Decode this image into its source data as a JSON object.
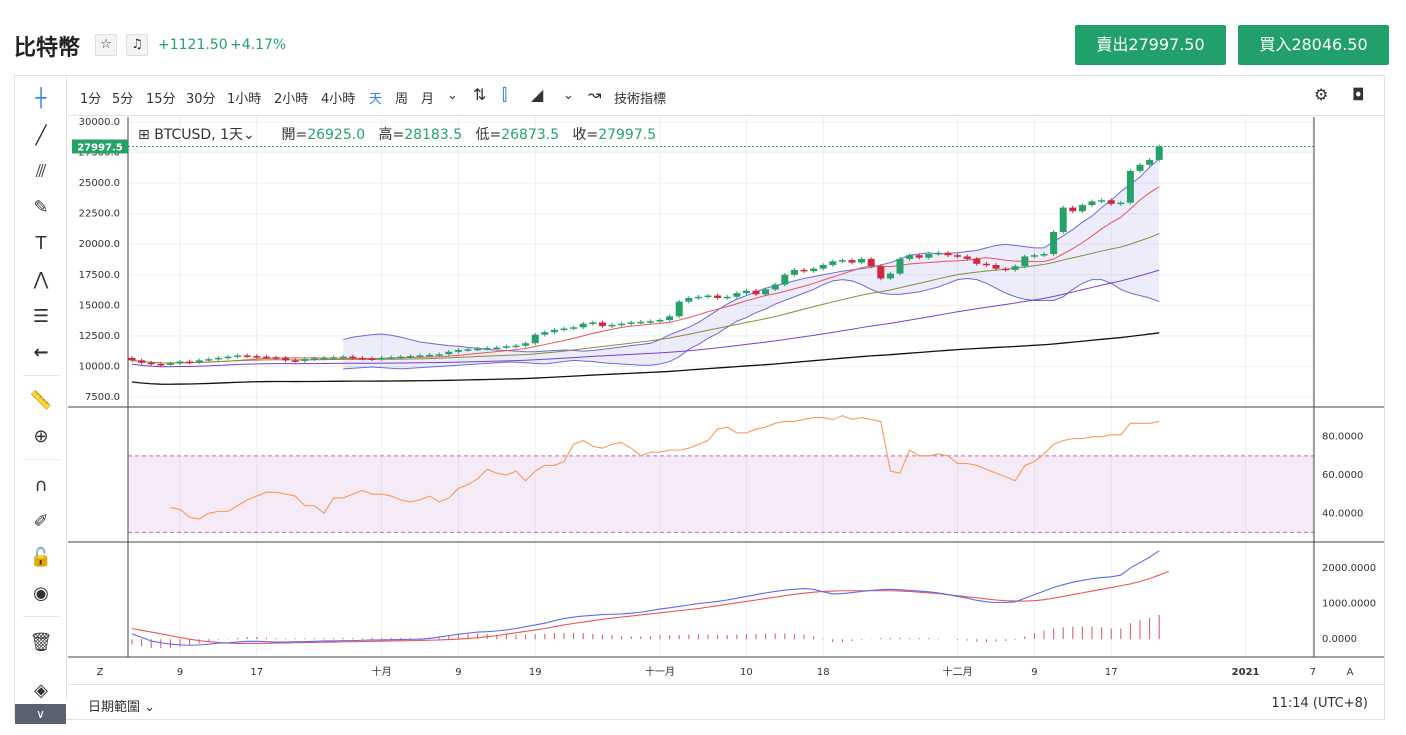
{
  "header": {
    "title": "比特幣",
    "star_icon": "star-icon",
    "bell_icon": "bell-icon",
    "change_abs": "+1121.50",
    "change_pct": "+4.17%",
    "sell_label": "賣出27997.50",
    "buy_label": "買入28046.50"
  },
  "toolbar": {
    "timeframes": [
      "1分",
      "5分",
      "15分",
      "30分",
      "1小時",
      "2小時",
      "4小時",
      "天",
      "周",
      "月"
    ],
    "active_timeframe": "天",
    "indicators_label": "技術指標"
  },
  "legend": {
    "symbol": "BTCUSD, 1天",
    "open_label": "開=",
    "open": "26925.0",
    "high_label": "高=",
    "high": "28183.5",
    "low_label": "低=",
    "low": "26873.5",
    "close_label": "收=",
    "close": "27997.5"
  },
  "bottom": {
    "date_range_label": "日期範圍",
    "clock": "11:14 (UTC+8)",
    "z_label": "Z",
    "a_label": "A"
  },
  "colors": {
    "up": "#26a269",
    "down": "#d0283c",
    "band": "#6b6bd6",
    "ma_red": "#e8565a",
    "ma_olive": "#8c8c3a",
    "ma_purple": "#7a3fd1",
    "ma_black": "#111111",
    "rsi": "#f59a5a",
    "macd": "#5b6bf0",
    "signal": "#e8565a"
  },
  "chart_data": [
    {
      "type": "candlestick",
      "title": "BTCUSD, 1天",
      "ylim": [
        7500,
        30000
      ],
      "yticks": [
        30000.0,
        27500.0,
        25000.0,
        22500.0,
        20000.0,
        17500.0,
        15000.0,
        12500.0,
        10000.0,
        7500.0
      ],
      "ytick_labels": [
        "30000.0",
        "27500.0",
        "25000.0",
        "22500.0",
        "20000.0",
        "17500.0",
        "15000.0",
        "12500.0",
        "10000.0",
        "7500.0"
      ],
      "last_price": 27997.5,
      "last_price_label": "27997.5",
      "xtick_labels": [
        {
          "i": 5,
          "label": "9"
        },
        {
          "i": 13,
          "label": "17"
        },
        {
          "i": 26,
          "label": "十月"
        },
        {
          "i": 34,
          "label": "9"
        },
        {
          "i": 42,
          "label": "19"
        },
        {
          "i": 55,
          "label": "十一月"
        },
        {
          "i": 64,
          "label": "10"
        },
        {
          "i": 72,
          "label": "18"
        },
        {
          "i": 86,
          "label": "十二月"
        },
        {
          "i": 94,
          "label": "9"
        },
        {
          "i": 102,
          "label": "17"
        },
        {
          "i": 116,
          "label": "2021"
        },
        {
          "i": 123,
          "label": "7"
        }
      ],
      "closes": [
        10500,
        10300,
        10200,
        10150,
        10250,
        10400,
        10350,
        10500,
        10600,
        10700,
        10800,
        10900,
        10850,
        10800,
        10750,
        10700,
        10500,
        10450,
        10600,
        10650,
        10700,
        10750,
        10800,
        10700,
        10650,
        10600,
        10700,
        10750,
        10800,
        10850,
        10900,
        10950,
        11000,
        11200,
        11350,
        11400,
        11450,
        11500,
        11550,
        11650,
        11700,
        11900,
        12600,
        12800,
        13000,
        13100,
        13200,
        13500,
        13600,
        13300,
        13400,
        13500,
        13600,
        13650,
        13700,
        13800,
        14100,
        15300,
        15600,
        15700,
        15800,
        15600,
        15700,
        16000,
        16200,
        15900,
        16300,
        16700,
        17500,
        17900,
        17800,
        18000,
        18300,
        18600,
        18700,
        18500,
        18800,
        18200,
        17200,
        17600,
        18800,
        19100,
        18900,
        19200,
        19300,
        19100,
        19000,
        18800,
        18400,
        18300,
        18000,
        17900,
        18200,
        19000,
        19100,
        19200,
        21000,
        23000,
        22700,
        23200,
        23500,
        23600,
        23300,
        23400,
        26000,
        26500,
        26900,
        28000
      ],
      "series": [
        {
          "name": "",
          "values": [
            12200,
            12400,
            12500,
            12600,
            12650,
            12550,
            12400,
            12200,
            12000,
            11900,
            11800,
            11700,
            11650,
            11550,
            11500,
            11400,
            11350,
            11300,
            11250,
            11200,
            11200,
            11250,
            11300,
            11350,
            11300,
            11250,
            11300,
            11400,
            11500,
            11600,
            11700,
            11800,
            11900,
            12200,
            12600,
            12900,
            13200,
            13600,
            14100,
            14600,
            15100,
            15500,
            15800,
            16100,
            16400,
            16600,
            16800,
            17000,
            17200,
            17350,
            17500,
            17650,
            17800,
            17900,
            18000,
            18100,
            18300,
            18500,
            18800,
            19100,
            19200,
            19300,
            19200,
            19250,
            19300,
            19400,
            19500,
            19700,
            19900,
            20000,
            19900,
            19800,
            19700,
            19700,
            20200,
            20700,
            21200,
            21800,
            22300,
            23000,
            23600,
            24300,
            24900,
            25500,
            26300,
            27000
          ]
        },
        {
          "name": "",
          "values": [
            9800,
            9850,
            9900,
            9950,
            9900,
            9850,
            9800,
            9850,
            9900,
            9950,
            10000,
            10050,
            10100,
            10150,
            10200,
            10250,
            10300,
            10350,
            10350,
            10300,
            10250,
            10200,
            10300,
            10400,
            10500,
            10450,
            10400,
            10300,
            10250,
            10200,
            10150,
            10100,
            10100,
            10200,
            10400,
            10800,
            11400,
            11800,
            12300,
            12700,
            13200,
            13700,
            14000,
            14400,
            14700,
            15100,
            15400,
            15700,
            16000,
            16300,
            16700,
            17000,
            17100,
            17000,
            16700,
            16300,
            16000,
            15900,
            15900,
            16000,
            16100,
            16300,
            16500,
            16800,
            17100,
            17200,
            17100,
            16800,
            16400,
            16000,
            15700,
            15500,
            15400,
            15400,
            15400,
            15700,
            16300,
            16800,
            17100,
            17100,
            16800,
            16300,
            16000,
            15800,
            15600,
            15300
          ]
        }
      ]
    },
    {
      "type": "line",
      "ylim": [
        25,
        95
      ],
      "yticks": [
        80,
        60,
        40
      ],
      "ytick_labels": [
        "80.0000",
        "60.0000",
        "40.0000"
      ],
      "bands": [
        70,
        30
      ],
      "series": [
        {
          "name": "",
          "values": [
            43,
            42,
            38,
            37,
            40,
            41,
            41,
            44,
            47,
            49,
            51,
            51,
            50,
            49,
            44,
            44,
            40,
            48,
            48,
            50,
            52,
            50,
            50,
            49,
            47,
            46,
            47,
            49,
            46,
            48,
            53,
            55,
            58,
            63,
            61,
            60,
            62,
            57,
            62,
            65,
            65,
            67,
            76,
            78,
            75,
            74,
            76,
            77,
            74,
            70,
            72,
            72,
            73,
            73,
            74,
            76,
            78,
            84,
            85,
            82,
            82,
            84,
            85,
            87,
            88,
            88,
            89,
            90,
            90,
            89,
            91,
            89,
            90,
            89,
            88,
            62,
            61,
            73,
            70,
            70,
            71,
            70,
            66,
            66,
            65,
            63,
            61,
            59,
            57,
            65,
            67,
            71,
            76,
            78,
            79,
            79,
            80,
            80,
            81,
            81,
            87,
            87,
            87,
            88
          ]
        }
      ]
    },
    {
      "type": "line",
      "ylim": [
        -500,
        2700
      ],
      "yticks": [
        2000,
        1000,
        0
      ],
      "ytick_labels": [
        "2000.0000",
        "1000.0000",
        "0.0000"
      ],
      "series": [
        {
          "name": "",
          "values": [
            150,
            50,
            -50,
            -100,
            -140,
            -160,
            -170,
            -160,
            -140,
            -110,
            -100,
            -80,
            -60,
            -60,
            -70,
            -80,
            -80,
            -75,
            -70,
            -60,
            -50,
            -50,
            -40,
            -40,
            -30,
            -20,
            -20,
            -15,
            -10,
            -5,
            0,
            20,
            60,
            100,
            140,
            170,
            200,
            210,
            230,
            260,
            300,
            350,
            400,
            450,
            520,
            580,
            620,
            650,
            670,
            690,
            700,
            710,
            730,
            760,
            800,
            850,
            880,
            920,
            960,
            1000,
            1030,
            1060,
            1100,
            1150,
            1200,
            1250,
            1300,
            1340,
            1380,
            1400,
            1420,
            1400,
            1330,
            1270,
            1280,
            1310,
            1340,
            1370,
            1390,
            1400,
            1390,
            1370,
            1350,
            1330,
            1300,
            1250,
            1200,
            1150,
            1090,
            1050,
            1030,
            1030,
            1050,
            1150,
            1250,
            1350,
            1450,
            1530,
            1600,
            1650,
            1700,
            1730,
            1750,
            1800,
            2000,
            2150,
            2300,
            2480
          ]
        },
        {
          "name": "",
          "values": [
            300,
            250,
            200,
            150,
            100,
            50,
            0,
            -40,
            -70,
            -90,
            -110,
            -120,
            -120,
            -120,
            -115,
            -110,
            -105,
            -100,
            -95,
            -90,
            -85,
            -80,
            -75,
            -70,
            -65,
            -60,
            -55,
            -50,
            -45,
            -40,
            -35,
            -30,
            -20,
            -10,
            0,
            20,
            40,
            70,
            100,
            140,
            180,
            220,
            260,
            300,
            350,
            400,
            440,
            480,
            520,
            560,
            590,
            620,
            650,
            680,
            710,
            740,
            770,
            800,
            830,
            860,
            900,
            940,
            980,
            1020,
            1060,
            1100,
            1140,
            1180,
            1220,
            1260,
            1290,
            1320,
            1340,
            1350,
            1360,
            1360,
            1360,
            1360,
            1360,
            1360,
            1350,
            1340,
            1320,
            1300,
            1280,
            1250,
            1220,
            1190,
            1160,
            1130,
            1100,
            1080,
            1070,
            1070,
            1080,
            1110,
            1150,
            1200,
            1250,
            1300,
            1350,
            1400,
            1450,
            1500,
            1550,
            1620,
            1700,
            1800,
            1900
          ]
        }
      ]
    }
  ]
}
